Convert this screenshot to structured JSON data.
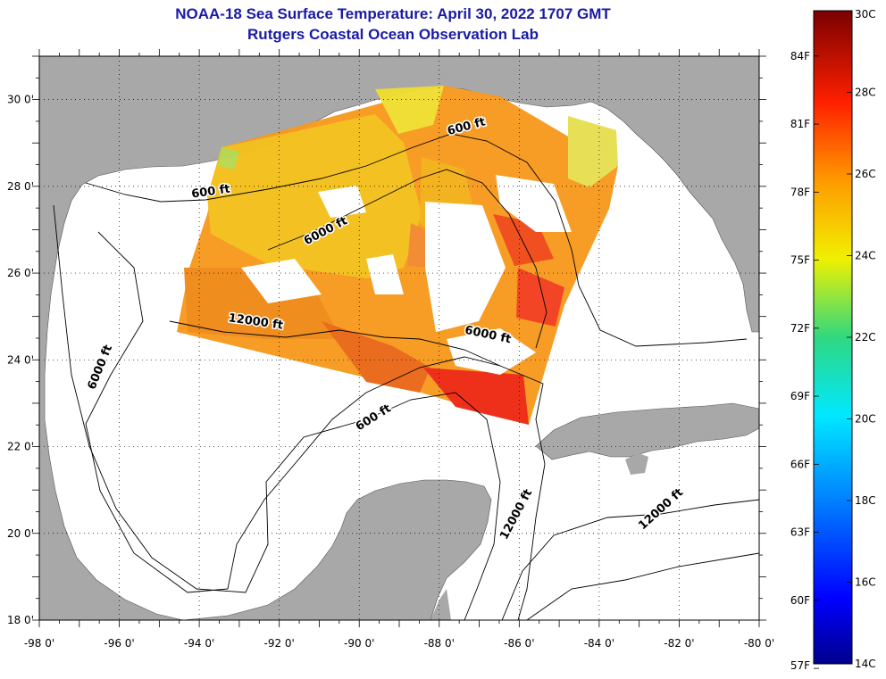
{
  "header": {
    "title": "NOAA-18 Sea Surface Temperature:  April 30, 2022 1707 GMT",
    "subtitle": "Rutgers Coastal Ocean Observation Lab"
  },
  "map": {
    "lon_range": [
      -98,
      -80
    ],
    "lat_range": [
      18,
      31
    ],
    "x_ticks": [
      {
        "value": -98,
        "label": "-98 0'"
      },
      {
        "value": -96,
        "label": "-96 0'"
      },
      {
        "value": -94,
        "label": "-94 0'"
      },
      {
        "value": -92,
        "label": "-92 0'"
      },
      {
        "value": -90,
        "label": "-90 0'"
      },
      {
        "value": -88,
        "label": "-88 0'"
      },
      {
        "value": -86,
        "label": "-86 0'"
      },
      {
        "value": -84,
        "label": "-84 0'"
      },
      {
        "value": -82,
        "label": "-82 0'"
      },
      {
        "value": -80,
        "label": "-80 0'"
      }
    ],
    "y_ticks": [
      {
        "value": 30,
        "label": "30 0'"
      },
      {
        "value": 28,
        "label": "28 0'"
      },
      {
        "value": 26,
        "label": "26 0'"
      },
      {
        "value": 24,
        "label": "24 0'"
      },
      {
        "value": 22,
        "label": "22 0'"
      },
      {
        "value": 20,
        "label": "20 0'"
      },
      {
        "value": 18,
        "label": "18 0'"
      }
    ],
    "contour_labels": [
      {
        "text": "600 ft",
        "lon": -93.7,
        "lat": 27.8,
        "angle": -8
      },
      {
        "text": "600 ft",
        "lon": -87.3,
        "lat": 29.3,
        "angle": -15
      },
      {
        "text": "6000 ft",
        "lon": -90.8,
        "lat": 26.9,
        "angle": -28
      },
      {
        "text": "12000 ft",
        "lon": -92.6,
        "lat": 24.8,
        "angle": 8
      },
      {
        "text": "6000 ft",
        "lon": -86.8,
        "lat": 24.5,
        "angle": 12
      },
      {
        "text": "6000 ft",
        "lon": -96.4,
        "lat": 23.8,
        "angle": -68
      },
      {
        "text": "600 ft",
        "lon": -89.6,
        "lat": 22.6,
        "angle": -32
      },
      {
        "text": "12000 ft",
        "lon": -86.0,
        "lat": 20.4,
        "angle": -62
      },
      {
        "text": "12000 ft",
        "lon": -82.4,
        "lat": 20.5,
        "angle": -42
      }
    ],
    "colors": {
      "land": "#a8a8a8",
      "ocean": "#ffffff",
      "contour": "#000000",
      "grid": "#000000"
    }
  },
  "colorbar": {
    "min_c": 14,
    "max_c": 30,
    "c_labels": [
      {
        "value": 30,
        "label": "30C"
      },
      {
        "value": 28,
        "label": "28C"
      },
      {
        "value": 26,
        "label": "26C"
      },
      {
        "value": 24,
        "label": "24C"
      },
      {
        "value": 22,
        "label": "22C"
      },
      {
        "value": 20,
        "label": "20C"
      },
      {
        "value": 18,
        "label": "18C"
      },
      {
        "value": 16,
        "label": "16C"
      },
      {
        "value": 14,
        "label": "14C"
      }
    ],
    "f_labels": [
      {
        "value": 84,
        "label": "84F"
      },
      {
        "value": 81,
        "label": "81F"
      },
      {
        "value": 78,
        "label": "78F"
      },
      {
        "value": 75,
        "label": "75F"
      },
      {
        "value": 72,
        "label": "72F"
      },
      {
        "value": 69,
        "label": "69F"
      },
      {
        "value": 66,
        "label": "66F"
      },
      {
        "value": 63,
        "label": "63F"
      },
      {
        "value": 60,
        "label": "60F"
      },
      {
        "value": 57,
        "label": "57F"
      }
    ]
  }
}
